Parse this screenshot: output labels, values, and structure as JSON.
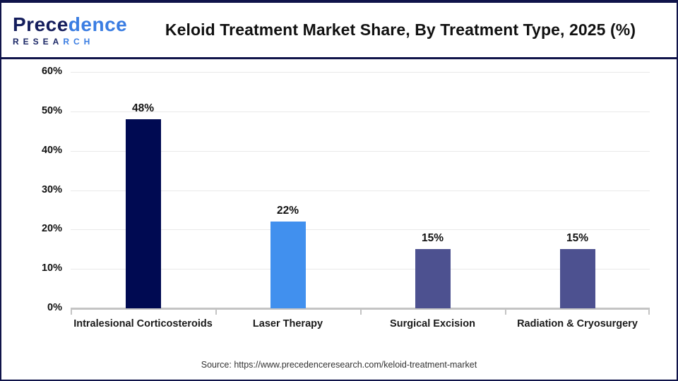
{
  "header": {
    "logo": {
      "brand_dark": "Prece",
      "brand_light": "dence",
      "sub_dark": "RESEA",
      "sub_light": "RCH"
    },
    "title": "Keloid Treatment Market Share, By Treatment Type, 2025 (%)"
  },
  "chart_data": {
    "type": "bar",
    "title": "Keloid Treatment Market Share, By Treatment Type, 2025 (%)",
    "categories": [
      "Intralesional Corticosteroids",
      "Laser Therapy",
      "Surgical Excision",
      "Radiation & Cryosurgery"
    ],
    "values": [
      48,
      22,
      15,
      15
    ],
    "value_labels": [
      "48%",
      "22%",
      "15%",
      "15%"
    ],
    "bar_colors": [
      "#000a52",
      "#4190ee",
      "#4d5190",
      "#4d5190"
    ],
    "xlabel": "",
    "ylabel": "",
    "ylim": [
      0,
      60
    ],
    "yticks": [
      "0%",
      "10%",
      "20%",
      "30%",
      "40%",
      "50%",
      "60%"
    ],
    "grid": true,
    "legend": false
  },
  "footer": {
    "source": "Source: https://www.precedenceresearch.com/keloid-treatment-market"
  },
  "colors": {
    "bar_navy": "#000a52",
    "bar_blue": "#4190ee",
    "bar_slate": "#4d5190",
    "frame_border": "#10144a",
    "gridline": "#e9e9e9",
    "axis_line": "#c4c4c4",
    "logo_navy": "#141d5c",
    "logo_blue": "#3a7de2"
  }
}
